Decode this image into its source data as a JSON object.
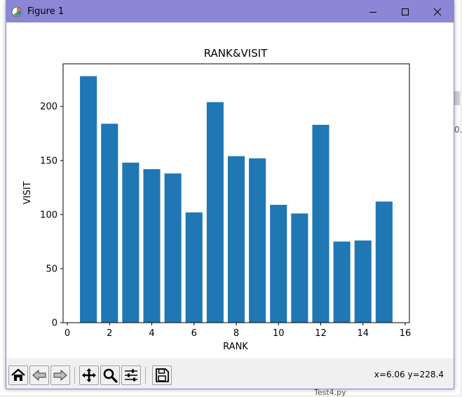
{
  "window": {
    "title": "Figure 1",
    "colors": {
      "titlebar": "#8b86d6"
    }
  },
  "background_fragments": [
    "0."
  ],
  "background_file_label": "Test4.py",
  "toolbar": {
    "buttons": [
      {
        "name": "home-button",
        "icon": "home-icon"
      },
      {
        "name": "back-button",
        "icon": "arrow-left-icon"
      },
      {
        "name": "forward-button",
        "icon": "arrow-right-icon"
      },
      {
        "name": "pan-button",
        "icon": "move-icon"
      },
      {
        "name": "zoom-button",
        "icon": "magnifier-icon"
      },
      {
        "name": "configure-subplots-button",
        "icon": "sliders-icon"
      },
      {
        "name": "save-button",
        "icon": "floppy-icon"
      }
    ],
    "coordinates": "x=6.06 y=228.4"
  },
  "chart_data": {
    "type": "bar",
    "title": "RANK&VISIT",
    "xlabel": "RANK",
    "ylabel": "VISIT",
    "x": [
      1,
      2,
      3,
      4,
      5,
      6,
      7,
      8,
      9,
      10,
      11,
      12,
      13,
      14,
      15
    ],
    "values": [
      228,
      184,
      148,
      142,
      138,
      102,
      204,
      154,
      152,
      109,
      101,
      183,
      75,
      76,
      112
    ],
    "xlim": [
      -0.2,
      16.2
    ],
    "ylim": [
      0,
      239.4
    ],
    "xticks": [
      0,
      2,
      4,
      6,
      8,
      10,
      12,
      14,
      16
    ],
    "yticks": [
      0,
      50,
      100,
      150,
      200
    ],
    "bar_color": "#1f77b4",
    "grid": false
  }
}
